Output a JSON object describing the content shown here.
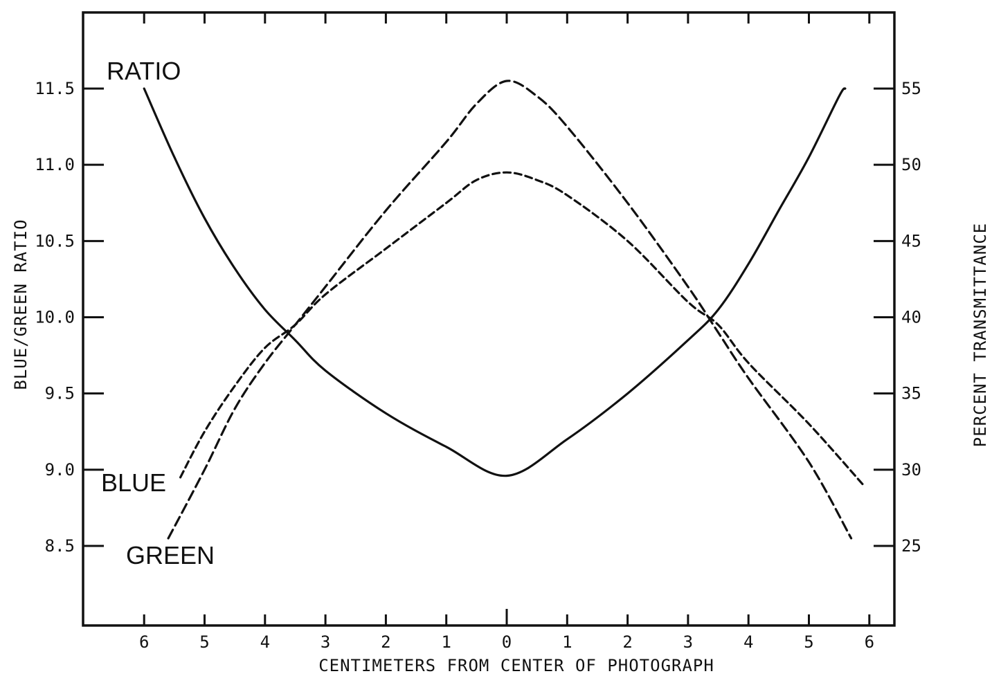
{
  "chart_data": {
    "type": "line",
    "xlabel": "CENTIMETERS  FROM CENTER OF PHOTOGRAPH",
    "ylabel_left": "BLUE/GREEN RATIO",
    "ylabel_right": "PERCENT   TRANSMITTANCE",
    "x_tick_labels": [
      "6",
      "5",
      "4",
      "3",
      "2",
      "1",
      "0",
      "1",
      "2",
      "3",
      "4",
      "5",
      "6"
    ],
    "x_tick_values": [
      -6,
      -5,
      -4,
      -3,
      -2,
      -1,
      0,
      1,
      2,
      3,
      4,
      5,
      6
    ],
    "xlim": [
      -7,
      7
    ],
    "left_axis": {
      "ylim": [
        8.0,
        12.0
      ],
      "tick_values": [
        8.5,
        9.0,
        9.5,
        10.0,
        10.5,
        11.0,
        11.5
      ],
      "tick_labels": [
        "8.5",
        "9.0",
        "9.5",
        "10.0",
        "10.5",
        "11.0",
        "11.5"
      ]
    },
    "right_axis": {
      "ylim": [
        20,
        60
      ],
      "tick_values": [
        25,
        30,
        35,
        40,
        45,
        50,
        55
      ],
      "tick_labels": [
        "25",
        "30",
        "35",
        "40",
        "45",
        "50",
        "55"
      ]
    },
    "series": [
      {
        "name": "RATIO",
        "axis": "left",
        "style": "solid",
        "x": [
          -6.0,
          -5.5,
          -5.0,
          -4.5,
          -4.0,
          -3.5,
          -3.0,
          -2.0,
          -1.0,
          0.0,
          1.0,
          2.0,
          3.0,
          3.5,
          4.0,
          4.5,
          5.0,
          5.5,
          5.6
        ],
        "y": [
          11.5,
          11.05,
          10.65,
          10.32,
          10.05,
          9.85,
          9.65,
          9.37,
          9.15,
          8.96,
          9.2,
          9.5,
          9.85,
          10.05,
          10.35,
          10.7,
          11.05,
          11.45,
          11.5
        ]
      },
      {
        "name": "BLUE",
        "axis": "right",
        "style": "dashed",
        "x": [
          -5.4,
          -5.0,
          -4.5,
          -4.0,
          -3.5,
          -3.0,
          -2.0,
          -1.0,
          -0.5,
          0.0,
          0.5,
          1.0,
          2.0,
          3.0,
          3.5,
          4.0,
          5.0,
          5.9
        ],
        "y": [
          29.5,
          32.5,
          35.5,
          38.0,
          39.5,
          41.5,
          44.5,
          47.5,
          49.0,
          49.5,
          49.0,
          48.0,
          45.0,
          41.0,
          39.5,
          37.0,
          33.0,
          29.0
        ]
      },
      {
        "name": "GREEN",
        "axis": "right",
        "style": "dashed",
        "x": [
          -5.6,
          -5.0,
          -4.5,
          -4.0,
          -3.5,
          -3.0,
          -2.0,
          -1.0,
          -0.5,
          0.0,
          0.5,
          1.0,
          2.0,
          3.0,
          3.5,
          4.0,
          5.0,
          5.7
        ],
        "y": [
          25.5,
          30.0,
          34.0,
          37.0,
          39.5,
          42.0,
          47.0,
          51.5,
          54.0,
          55.5,
          54.5,
          52.5,
          47.5,
          42.0,
          39.0,
          36.0,
          30.5,
          25.5
        ]
      }
    ],
    "grid": false
  }
}
